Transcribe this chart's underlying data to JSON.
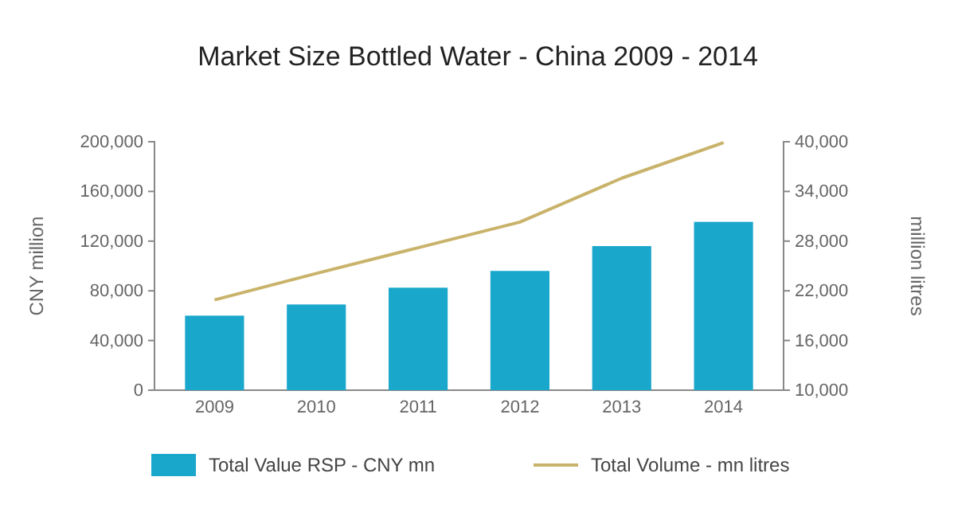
{
  "chart_data": {
    "type": "bar",
    "title": "Market Size Bottled Water - China 2009 - 2014",
    "ylabel": "CNY million",
    "y2label": "million litres",
    "categories": [
      "2009",
      "2010",
      "2011",
      "2012",
      "2013",
      "2014"
    ],
    "series": [
      {
        "name": "Total Value RSP - CNY mn",
        "color": "#1aa7cc",
        "values": [
          60000,
          69000,
          82500,
          96000,
          116000,
          135500
        ]
      },
      {
        "name": "Total Volume - mn litres",
        "type": "line",
        "axis": "y2",
        "color": "#c9b36b",
        "values": [
          20900,
          24100,
          27200,
          30300,
          35600,
          39900
        ]
      }
    ],
    "ylim": [
      0,
      200000
    ],
    "yticks": [
      {
        "value": 0,
        "label": "0"
      },
      {
        "value": 40000,
        "label": "40,000"
      },
      {
        "value": 80000,
        "label": "80,000"
      },
      {
        "value": 120000,
        "label": "120,000"
      },
      {
        "value": 160000,
        "label": "160,000"
      },
      {
        "value": 200000,
        "label": "200,000"
      }
    ],
    "y2lim": [
      10000,
      40000
    ],
    "y2ticks": [
      {
        "value": 10000,
        "label": "10,000"
      },
      {
        "value": 16000,
        "label": "16,000"
      },
      {
        "value": 22000,
        "label": "22,000"
      },
      {
        "value": 28000,
        "label": "28,000"
      },
      {
        "value": 34000,
        "label": "34,000"
      },
      {
        "value": 40000,
        "label": "40,000"
      }
    ],
    "legend": "bottom"
  }
}
